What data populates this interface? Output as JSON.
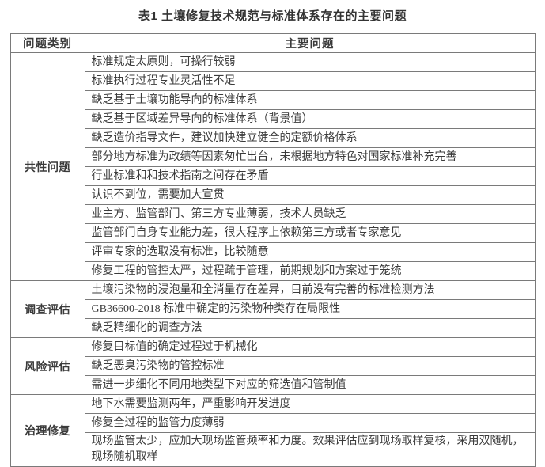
{
  "title": "表1  土壤修复技术规范与标准体系存在的主要问题",
  "table": {
    "headers": [
      "问题类别",
      "主要问题"
    ],
    "sections": [
      {
        "category": "共性问题",
        "issues": [
          "标准规定太原则，可操行较弱",
          "标准执行过程专业灵活性不足",
          "缺乏基于土壤功能导向的标准体系",
          "缺乏基于区域差异导向的标准体系（背景值）",
          "缺乏造价指导文件，建议加快建立健全的定额价格体系",
          "部分地方标准为政绩等因素匆忙出台，未根据地方特色对国家标准补充完善",
          "行业标准和和技术指南之间存在矛盾",
          "认识不到位，需要加大宣贯",
          "业主方、监管部门、第三方专业薄弱，技术人员缺乏",
          "监管部门自身专业能力差，很大程序上依赖第三方或者专家意见",
          "评审专家的选取没有标准，比较随意",
          "修复工程的管控太严，过程疏于管理，前期规划和方案过于笼统"
        ]
      },
      {
        "category": "调查评估",
        "issues": [
          "土壤污染物的浸泡量和全消量存在差异，目前没有完善的标准检测方法",
          "GB36600-2018 标准中确定的污染物种类存在局限性",
          "缺乏精细化的调查方法"
        ]
      },
      {
        "category": "风险评估",
        "issues": [
          "修复目标值的确定过程过于机械化",
          "缺乏恶臭污染物的管控标准",
          "需进一步细化不同用地类型下对应的筛选值和管制值"
        ]
      },
      {
        "category": "治理修复",
        "issues": [
          "地下水需要监测两年，严重影响开发进度",
          "修复全过程的监管力度薄弱",
          "现场监管太少，应加大现场监管频率和力度。效果评估应到现场取样复核，采用双随机，现场随机取样"
        ]
      }
    ]
  },
  "colors": {
    "background": "#ffffff",
    "text": "#3b3b3b",
    "border": "#7a7a7a"
  }
}
